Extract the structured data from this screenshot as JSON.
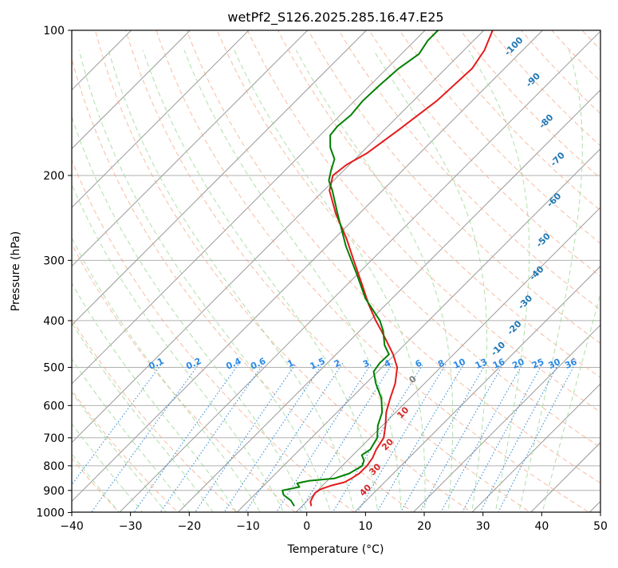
{
  "chart_data": {
    "type": "line",
    "diagram": "skew-T log-P",
    "title": "wetPf2_S126.2025.285.16.47.E25",
    "xlabel": "Temperature (°C)",
    "ylabel": "Pressure (hPa)",
    "xlim": [
      -40,
      50
    ],
    "ylim": [
      1050,
      100
    ],
    "y_scale": "log",
    "grid": true,
    "x_ticks": [
      -40,
      -30,
      -20,
      -10,
      0,
      10,
      20,
      30,
      40,
      50
    ],
    "y_ticks": [
      100,
      200,
      300,
      400,
      500,
      600,
      700,
      800,
      900,
      1000
    ],
    "colors": {
      "temperature": "#e41a1c",
      "dewpoint": "#008000",
      "isotherm": "#999999",
      "dry_adiabat": "#f4a582",
      "moist_adiabat": "#a1d99b",
      "mixing_ratio": "#3a8fd9",
      "dry_label": "#d62728",
      "moist_label": "#1f77b4",
      "mixing_label": "#2b8ae6"
    },
    "mixing_ratio_labels": [
      "0.1",
      "0.2",
      "0.4",
      "0.6",
      "1",
      "1.5",
      "2",
      "3",
      "4",
      "6",
      "8",
      "10",
      "13",
      "16",
      "20",
      "25",
      "30",
      "36"
    ],
    "mixing_ratio_values": [
      0.1,
      0.2,
      0.4,
      0.6,
      1,
      1.5,
      2,
      3,
      4,
      6,
      8,
      10,
      13,
      16,
      20,
      25,
      30,
      36
    ],
    "moist_adiabat_labels": [
      "-100",
      "-90",
      "-80",
      "-70",
      "-60",
      "-50",
      "-40",
      "-30",
      "-20",
      "-10"
    ],
    "moist_adiabat_label_positions": [
      {
        "t": -41.5,
        "p": 109
      },
      {
        "t": -32.5,
        "p": 128
      },
      {
        "t": -23.2,
        "p": 156
      },
      {
        "t": -14.8,
        "p": 187
      },
      {
        "t": -8.5,
        "p": 227
      },
      {
        "t": -3.5,
        "p": 275
      },
      {
        "t": 1.0,
        "p": 322
      },
      {
        "t": 4.0,
        "p": 370
      },
      {
        "t": 6.5,
        "p": 418
      },
      {
        "t": 7.3,
        "p": 462
      }
    ],
    "dry_adiabat_labels": [
      "0",
      "10",
      "20",
      "30",
      "40"
    ],
    "dry_adiabat_label_positions": [
      {
        "t": -2.0,
        "p": 535
      },
      {
        "t": 2.0,
        "p": 627
      },
      {
        "t": 4.8,
        "p": 730
      },
      {
        "t": 6.9,
        "p": 822
      },
      {
        "t": 8.8,
        "p": 908
      }
    ],
    "series": [
      {
        "name": "",
        "role": "temperature",
        "points": [
          {
            "p": 970,
            "t": 1.6
          },
          {
            "p": 950,
            "t": 0.7
          },
          {
            "p": 930,
            "t": 0.3
          },
          {
            "p": 910,
            "t": 0.0
          },
          {
            "p": 895,
            "t": 0.3
          },
          {
            "p": 880,
            "t": 1.4
          },
          {
            "p": 865,
            "t": 3.2
          },
          {
            "p": 850,
            "t": 3.7
          },
          {
            "p": 830,
            "t": 4.2
          },
          {
            "p": 800,
            "t": 4.2
          },
          {
            "p": 770,
            "t": 3.8
          },
          {
            "p": 740,
            "t": 3.0
          },
          {
            "p": 700,
            "t": 2.3
          },
          {
            "p": 660,
            "t": 0.5
          },
          {
            "p": 620,
            "t": -1.6
          },
          {
            "p": 580,
            "t": -3.3
          },
          {
            "p": 540,
            "t": -5.0
          },
          {
            "p": 500,
            "t": -7.4
          },
          {
            "p": 470,
            "t": -10.3
          },
          {
            "p": 440,
            "t": -13.8
          },
          {
            "p": 420,
            "t": -16.3
          },
          {
            "p": 400,
            "t": -19.0
          },
          {
            "p": 370,
            "t": -23.0
          },
          {
            "p": 340,
            "t": -27.0
          },
          {
            "p": 300,
            "t": -33.0
          },
          {
            "p": 270,
            "t": -38.0
          },
          {
            "p": 240,
            "t": -44.0
          },
          {
            "p": 215,
            "t": -49.0
          },
          {
            "p": 200,
            "t": -51.0
          },
          {
            "p": 190,
            "t": -50.5
          },
          {
            "p": 180,
            "t": -49.0
          },
          {
            "p": 160,
            "t": -47.5
          },
          {
            "p": 140,
            "t": -46.0
          },
          {
            "p": 120,
            "t": -45.5
          },
          {
            "p": 110,
            "t": -46.5
          },
          {
            "p": 100,
            "t": -48.5
          }
        ]
      },
      {
        "name": "",
        "role": "dewpoint",
        "points": [
          {
            "p": 970,
            "t": -1.3
          },
          {
            "p": 945,
            "t": -2.8
          },
          {
            "p": 920,
            "t": -5.0
          },
          {
            "p": 900,
            "t": -6.0
          },
          {
            "p": 885,
            "t": -3.7
          },
          {
            "p": 870,
            "t": -4.7
          },
          {
            "p": 860,
            "t": -3.2
          },
          {
            "p": 850,
            "t": 0.8
          },
          {
            "p": 830,
            "t": 2.5
          },
          {
            "p": 800,
            "t": 3.4
          },
          {
            "p": 780,
            "t": 2.8
          },
          {
            "p": 760,
            "t": 1.5
          },
          {
            "p": 740,
            "t": 2.0
          },
          {
            "p": 700,
            "t": 1.2
          },
          {
            "p": 660,
            "t": -0.8
          },
          {
            "p": 620,
            "t": -2.3
          },
          {
            "p": 580,
            "t": -4.8
          },
          {
            "p": 540,
            "t": -8.3
          },
          {
            "p": 510,
            "t": -10.7
          },
          {
            "p": 490,
            "t": -11.1
          },
          {
            "p": 470,
            "t": -11.0
          },
          {
            "p": 450,
            "t": -13.3
          },
          {
            "p": 420,
            "t": -16.0
          },
          {
            "p": 400,
            "t": -18.3
          },
          {
            "p": 360,
            "t": -24.5
          },
          {
            "p": 320,
            "t": -30.2
          },
          {
            "p": 280,
            "t": -36.8
          },
          {
            "p": 240,
            "t": -43.7
          },
          {
            "p": 215,
            "t": -48.5
          },
          {
            "p": 205,
            "t": -50.8
          },
          {
            "p": 195,
            "t": -52.2
          },
          {
            "p": 185,
            "t": -53.5
          },
          {
            "p": 175,
            "t": -56.2
          },
          {
            "p": 165,
            "t": -58.3
          },
          {
            "p": 158,
            "t": -58.6
          },
          {
            "p": 150,
            "t": -58.2
          },
          {
            "p": 140,
            "t": -58.6
          },
          {
            "p": 130,
            "t": -58.4
          },
          {
            "p": 120,
            "t": -58.0
          },
          {
            "p": 112,
            "t": -57.0
          },
          {
            "p": 105,
            "t": -57.8
          },
          {
            "p": 100,
            "t": -57.8
          }
        ]
      }
    ]
  }
}
